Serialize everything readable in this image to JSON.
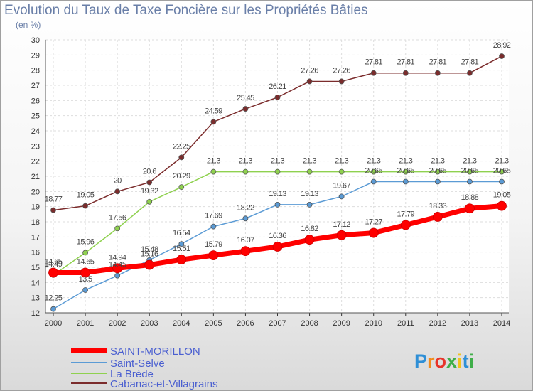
{
  "header": {
    "title": "Evolution du Taux de Taxe Foncière sur les Propriétés Bâties",
    "unit": "(en %)"
  },
  "logo": {
    "letters": [
      "P",
      "r",
      "o",
      "x",
      "i",
      "t",
      "i"
    ],
    "colors": [
      "#2f8fd6",
      "#f28c1c",
      "#e7342a",
      "#3fae49",
      "#f2c21b",
      "#2f8fd6",
      "#3fae49"
    ]
  },
  "chart_data": {
    "type": "line",
    "title": "Evolution du Taux de Taxe Foncière sur les Propriétés Bâties",
    "ylabel": "(en %)",
    "ylim": [
      12,
      30
    ],
    "yticks": [
      12,
      13,
      14,
      15,
      16,
      17,
      18,
      19,
      20,
      21,
      22,
      23,
      24,
      25,
      26,
      27,
      28,
      29,
      30
    ],
    "x": [
      "2000",
      "2001",
      "2002",
      "2003",
      "2004",
      "2005",
      "2006",
      "2007",
      "2008",
      "2009",
      "2010",
      "2011",
      "2012",
      "2013",
      "2014"
    ],
    "grid": true,
    "legend": "bottom-left",
    "series": [
      {
        "name": "SAINT-MORILLON",
        "color": "#ff0000",
        "values": [
          14.65,
          14.65,
          14.94,
          15.16,
          15.51,
          15.79,
          16.07,
          16.36,
          16.82,
          17.12,
          17.27,
          17.79,
          18.33,
          18.88,
          19.05
        ],
        "labels": [
          "14.65",
          "14.65",
          "14.94",
          "15.16",
          "15.51",
          "15.79",
          "16.07",
          "16.36",
          "16.82",
          "17.12",
          "17.27",
          "17.79",
          "18.33",
          "18.88",
          "19.05"
        ]
      },
      {
        "name": "Saint-Selve",
        "color": "#5b9bd5",
        "values": [
          12.25,
          13.5,
          14.45,
          15.48,
          16.54,
          17.69,
          18.22,
          19.13,
          19.13,
          19.67,
          20.65,
          20.65,
          20.65,
          20.65,
          20.65
        ],
        "labels": [
          "12.25",
          "13.5",
          "14.45",
          "15.48",
          "16.54",
          "17.69",
          "18.22",
          "19.13",
          "19.13",
          "19.67",
          "20.65",
          "20.65",
          "20.65",
          "20.65",
          "20.65"
        ]
      },
      {
        "name": "La Brède",
        "color": "#8fd14f",
        "values": [
          14.49,
          15.96,
          17.56,
          19.32,
          20.29,
          21.3,
          21.3,
          21.3,
          21.3,
          21.3,
          21.3,
          21.3,
          21.3,
          21.3,
          21.3
        ],
        "labels": [
          "14.49",
          "15.96",
          "17.56",
          "19.32",
          "20.29",
          "21.3",
          "21.3",
          "21.3",
          "21.3",
          "21.3",
          "21.3",
          "21.3",
          "21.3",
          "21.3",
          "21.3"
        ]
      },
      {
        "name": "Cabanac-et-Villagrains",
        "color": "#7b2c2c",
        "values": [
          18.77,
          19.05,
          20,
          20.6,
          22.25,
          24.59,
          25.45,
          26.21,
          27.26,
          27.26,
          27.81,
          27.81,
          27.81,
          27.81,
          28.92
        ],
        "labels": [
          "18.77",
          "19.05",
          "20",
          "20.6",
          "22.25",
          "24.59",
          "25.45",
          "26.21",
          "27.26",
          "27.26",
          "27.81",
          "27.81",
          "27.81",
          "27.81",
          "28.92"
        ]
      }
    ]
  }
}
